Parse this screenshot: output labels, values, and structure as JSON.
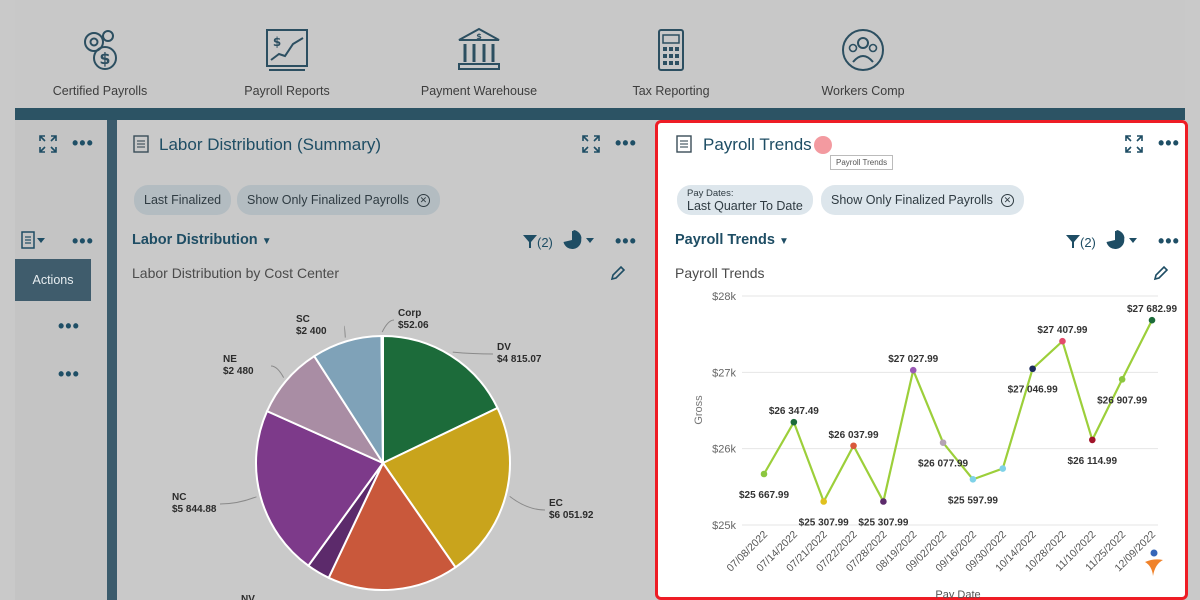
{
  "nav": {
    "items": [
      {
        "label": "Certified Payrolls",
        "icon": "gears-dollar-icon"
      },
      {
        "label": "Payroll Reports",
        "icon": "report-chart-icon"
      },
      {
        "label": "Payment Warehouse",
        "icon": "bank-icon"
      },
      {
        "label": "Tax Reporting",
        "icon": "calculator-icon"
      },
      {
        "label": "Workers Comp",
        "icon": "people-circle-icon"
      }
    ]
  },
  "left": {
    "actions_label": "Actions"
  },
  "labor_card": {
    "title": "Labor Distribution (Summary)",
    "chips": [
      "Last Finalized",
      "Show Only Finalized Payrolls"
    ],
    "dropdown": "Labor Distribution",
    "filter_count": "(2)",
    "subtitle": "Labor Distribution by Cost Center"
  },
  "trends_card": {
    "title": "Payroll Trends",
    "tooltip": "Payroll Trends",
    "chip_paydates_label": "Pay Dates:",
    "chip_paydates_value": "Last Quarter To Date",
    "chip_finalized": "Show Only Finalized Payrolls",
    "dropdown": "Payroll Trends",
    "filter_count": "(2)",
    "subtitle": "Payroll Trends"
  },
  "chart_data": [
    {
      "type": "pie",
      "title": "Labor Distribution by Cost Center",
      "slices": [
        {
          "name": "DV",
          "label": "$4 815.07",
          "value": 4815.07,
          "color": "#1c6b3a"
        },
        {
          "name": "EC",
          "label": "$6 051.92",
          "value": 6051.92,
          "color": "#c9a41c"
        },
        {
          "name": "",
          "label": "",
          "value": 4500,
          "color": "#c9583b"
        },
        {
          "name": "",
          "label": "",
          "value": 800,
          "color": "#5c2a6b"
        },
        {
          "name": "NC",
          "label": "$5 844.88",
          "value": 5844.88,
          "color": "#7d3a8a"
        },
        {
          "name": "NE",
          "label": "$2 480",
          "value": 2480,
          "color": "#a98da4"
        },
        {
          "name": "SC",
          "label": "$2 400",
          "value": 2400,
          "color": "#7fa2b8"
        },
        {
          "name": "Corp",
          "label": "$52.06",
          "value": 52.06,
          "color": "#a4a43a"
        }
      ],
      "partial_label": "NV..."
    },
    {
      "type": "line",
      "title": "Payroll Trends",
      "xlabel": "Pay Date",
      "ylabel": "Gross",
      "ylim": [
        25000,
        28000
      ],
      "yticks": [
        "$25k",
        "$26k",
        "$27k",
        "$28k"
      ],
      "x_tick_labels": [
        "07/08/2022",
        "07/14/2022",
        "07/21/2022",
        "07/22/2022",
        "07/28/2022",
        "08/19/2022",
        "09/02/2022",
        "09/16/2022",
        "09/30/2022",
        "10/14/2022",
        "10/28/2022",
        "11/10/2022",
        "11/25/2022",
        "12/09/2022"
      ],
      "points": [
        {
          "x": 0,
          "y": 25667.99,
          "label": "$25 667.99",
          "color": "#8cc63f"
        },
        {
          "x": 1,
          "y": 26347.49,
          "label": "$26 347.49",
          "color": "#1c6b3a"
        },
        {
          "x": 2,
          "y": 25307.99,
          "label": "$25 307.99",
          "color": "#e0c11e"
        },
        {
          "x": 3,
          "y": 26037.99,
          "label": "$26 037.99",
          "color": "#d9583b"
        },
        {
          "x": 4,
          "y": 25307.99,
          "label": "$25 307.99",
          "color": "#5c2a6b"
        },
        {
          "x": 5,
          "y": 27027.99,
          "label": "$27 027.99",
          "color": "#9b59b6"
        },
        {
          "x": 6,
          "y": 26077.99,
          "label": "$26 077.99",
          "color": "#b5a4b4"
        },
        {
          "x": 7,
          "y": 25597.99,
          "label": "$25 597.99",
          "color": "#7fd2e8"
        },
        {
          "x": 8,
          "y": 25740,
          "label": "",
          "color": "#7fd2e8"
        },
        {
          "x": 9,
          "y": 27046.99,
          "label": "$27 046.99",
          "color": "#1b2a5c"
        },
        {
          "x": 10,
          "y": 27407.99,
          "label": "$27 407.99",
          "color": "#e34b6b"
        },
        {
          "x": 11,
          "y": 26114.99,
          "label": "$26 114.99",
          "color": "#a1142a"
        },
        {
          "x": 12,
          "y": 26907.99,
          "label": "$26 907.99",
          "color": "#8cc63f"
        },
        {
          "x": 13,
          "y": 27682.99,
          "label": "$27 682.99",
          "color": "#1c6b3a"
        }
      ],
      "line_color": "#9ccf3a"
    }
  ]
}
